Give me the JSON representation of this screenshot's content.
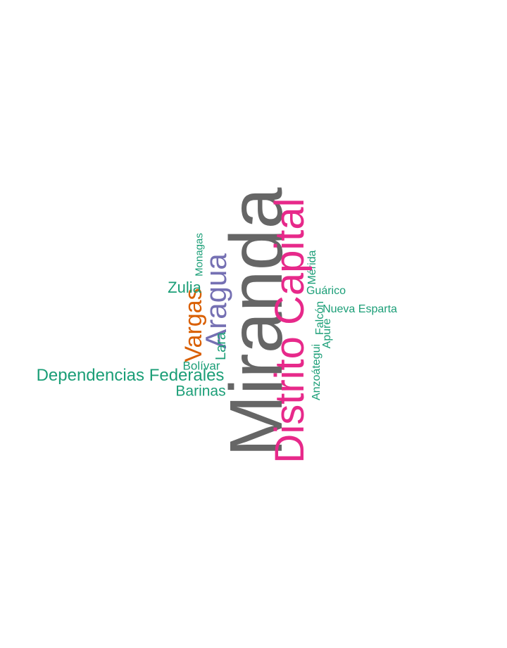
{
  "colors": {
    "gray": "#666666",
    "magenta": "#e7298a",
    "purple": "#7570b3",
    "orange": "#d95f02",
    "green": "#1b9e77",
    "background": "#ffffff"
  },
  "words": {
    "miranda": "Miranda",
    "distrito_capital": "Distrito Capital",
    "aragua": "Aragua",
    "vargas": "Vargas",
    "lara": "Lara",
    "zulia": "Zulia",
    "monagas": "Monagas",
    "bolivar": "Bolívar",
    "dependencias_federales": "Dependencias Federales",
    "barinas": "Barinas",
    "merida": "Mérida",
    "guarico": "Guárico",
    "nueva_esparta": "Nueva Esparta",
    "falcon": "Falcón",
    "apure": "Apure",
    "anzoategui": "Anzoátegui"
  }
}
